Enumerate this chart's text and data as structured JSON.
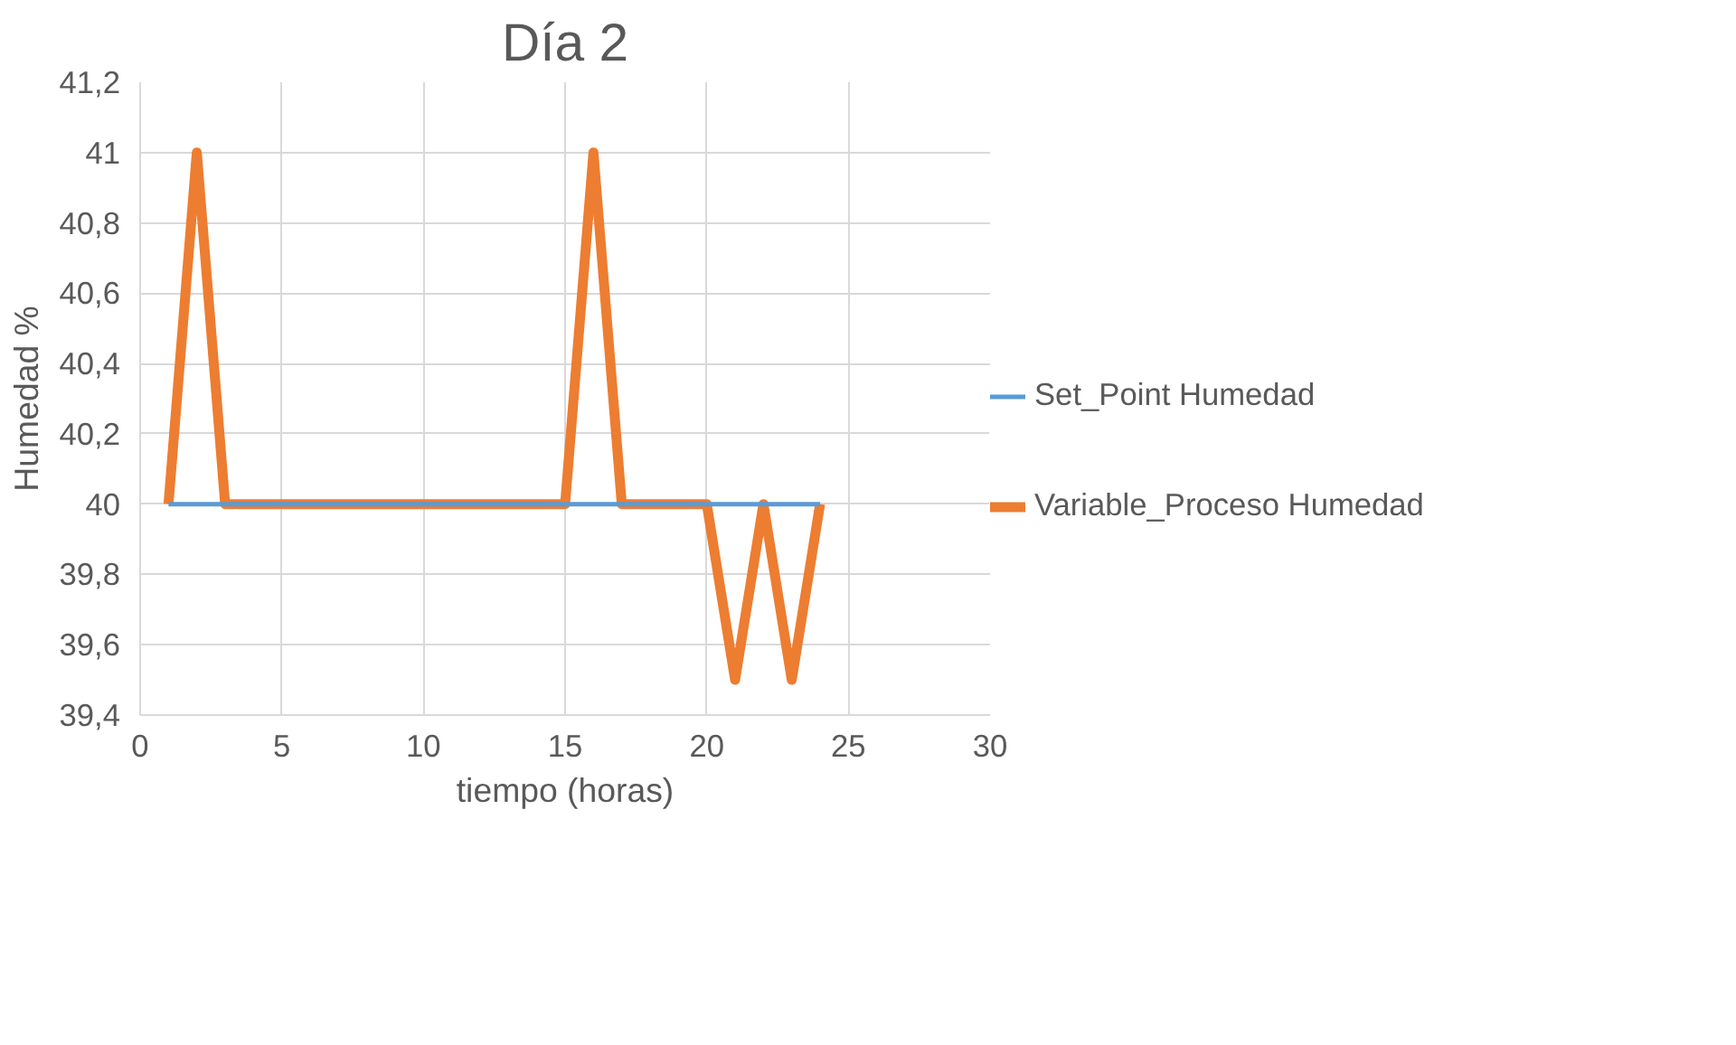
{
  "chart_data": {
    "type": "line",
    "title": "Día 2",
    "xlabel": "tiempo (horas)",
    "ylabel": "Humedad %",
    "x": [
      1,
      2,
      3,
      4,
      5,
      6,
      7,
      8,
      9,
      10,
      11,
      12,
      13,
      14,
      15,
      16,
      17,
      18,
      19,
      20,
      21,
      22,
      23,
      24
    ],
    "series": [
      {
        "name": "Set_Point Humedad",
        "color": "#5b9bd5",
        "values": [
          40,
          40,
          40,
          40,
          40,
          40,
          40,
          40,
          40,
          40,
          40,
          40,
          40,
          40,
          40,
          40,
          40,
          40,
          40,
          40,
          40,
          40,
          40,
          40
        ]
      },
      {
        "name": "Variable_Proceso Humedad",
        "color": "#ed7d31",
        "values": [
          40,
          41,
          40,
          40,
          40,
          40,
          40,
          40,
          40,
          40,
          40,
          40,
          40,
          40,
          40,
          41,
          40,
          40,
          40,
          40,
          39.5,
          40,
          39.5,
          40
        ]
      }
    ],
    "xlim": [
      0,
      30
    ],
    "xticks": [
      0,
      5,
      10,
      15,
      20,
      25,
      30
    ],
    "ylim": [
      39.4,
      41.2
    ],
    "yticks": [
      {
        "value": 39.4,
        "label": "39,4"
      },
      {
        "value": 39.6,
        "label": "39,6"
      },
      {
        "value": 39.8,
        "label": "39,8"
      },
      40,
      {
        "value": 40.2,
        "label": "40,2"
      },
      {
        "value": 40.4,
        "label": "40,4"
      },
      {
        "value": 40.6,
        "label": "40,6"
      },
      {
        "value": 40.8,
        "label": "40,8"
      },
      41,
      {
        "value": 41.2,
        "label": "41,2"
      }
    ],
    "grid": true,
    "legend": "right",
    "marker": "none",
    "line_style": "solid"
  }
}
